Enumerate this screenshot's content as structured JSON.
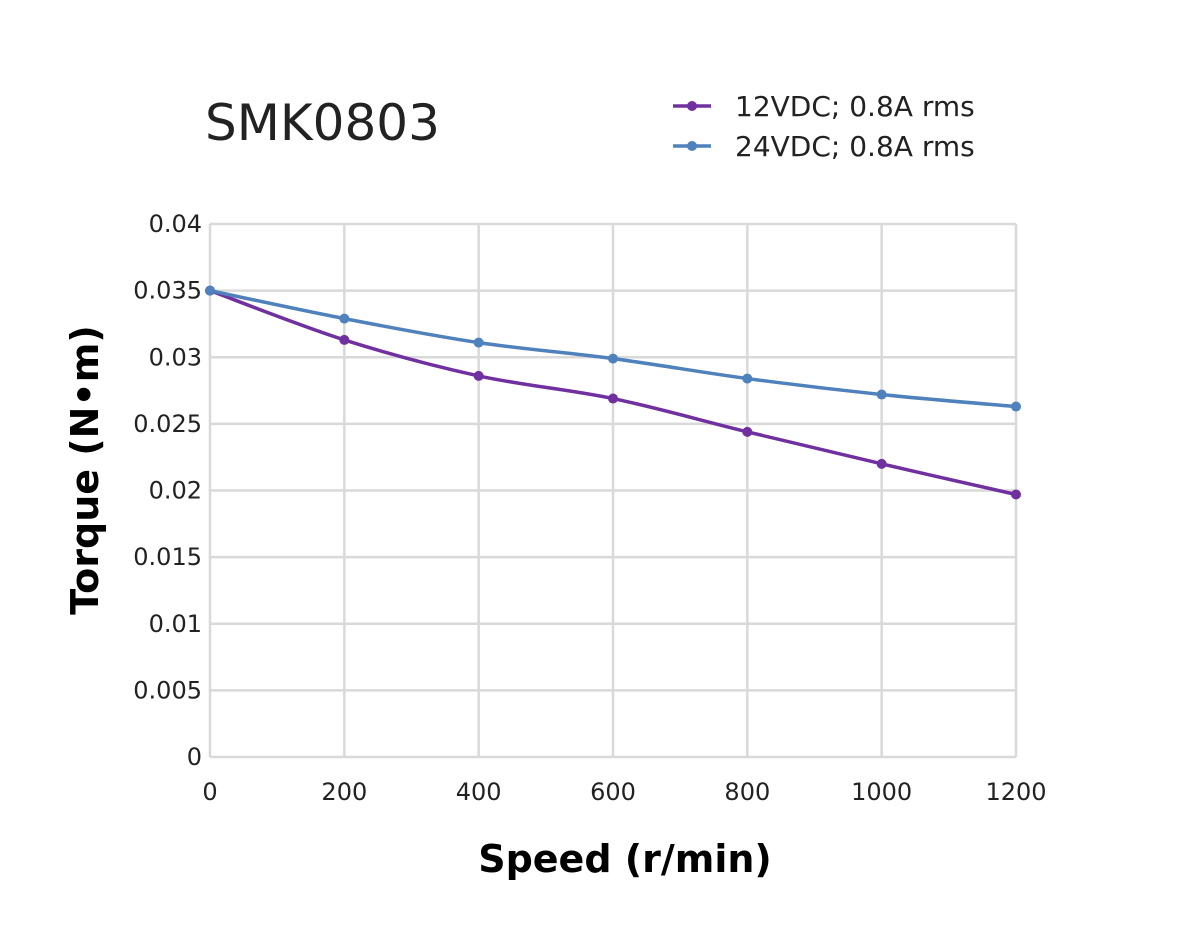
{
  "chart_data": {
    "type": "line",
    "title": "SMK0803",
    "xlabel": "Speed (r/min)",
    "ylabel": "Torque (N•m)",
    "xlim": [
      0,
      1200
    ],
    "ylim": [
      0,
      0.04
    ],
    "x": [
      0,
      200,
      400,
      600,
      800,
      1000,
      1200
    ],
    "x_ticks": [
      "0",
      "200",
      "400",
      "600",
      "800",
      "1000",
      "1200"
    ],
    "y_ticks": [
      "0",
      "0.005",
      "0.01",
      "0.015",
      "0.02",
      "0.025",
      "0.03",
      "0.035",
      "0.04"
    ],
    "grid": true,
    "legend_position": "top-right",
    "series": [
      {
        "name": "12VDC; 0.8A rms",
        "color": "#7030a0",
        "values": [
          0.035,
          0.0313,
          0.0286,
          0.0269,
          0.0244,
          0.022,
          0.0197
        ]
      },
      {
        "name": "24VDC; 0.8A rms",
        "color": "#4f81bd",
        "values": [
          0.035,
          0.0329,
          0.0311,
          0.0299,
          0.0284,
          0.0272,
          0.0263
        ]
      }
    ]
  }
}
